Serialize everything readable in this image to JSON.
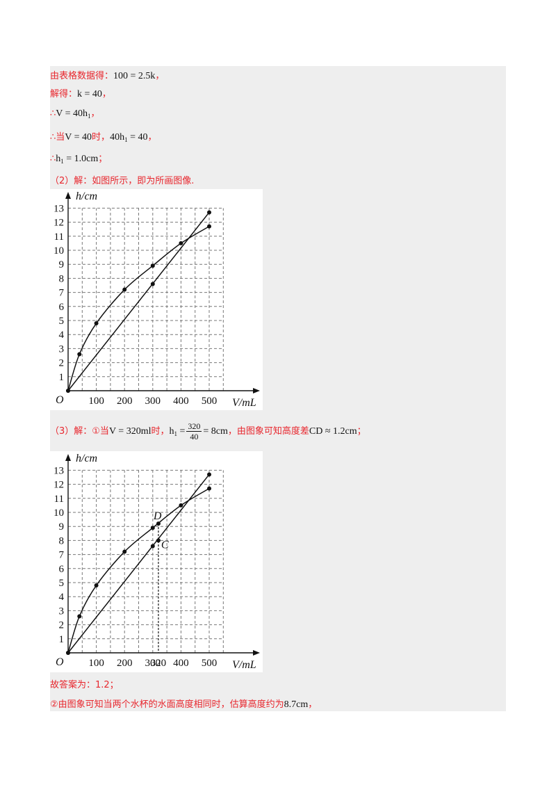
{
  "text": {
    "l1_prefix": "由表格数据得：",
    "l1_eq": "100 = 2.5k",
    "l1_tail": "，",
    "l2_prefix": "解得：",
    "l2_eq": "k = 40",
    "l2_tail": "，",
    "l3_prefix": "∴",
    "l3_eq": "V = 40h",
    "l3_sub": "1",
    "l3_tail": "，",
    "l4_prefix": "∴当",
    "l4_eq1": "V = 40",
    "l4_mid": "时，",
    "l4_eq2": "40h",
    "l4_sub": "1",
    "l4_eq2b": " = 40",
    "l4_tail": "，",
    "l5_prefix": "∴",
    "l5_eq": "h",
    "l5_sub": "1",
    "l5_eq2": " = 1.0cm",
    "l5_tail": "；",
    "l6": "（2）解：如图所示，即为所画图像.",
    "l7_prefix": "（3）解：①当",
    "l7_eq1": "V = 320ml",
    "l7_mid": "时，",
    "l7_h": "h",
    "l7_hsub": "1",
    "l7_eqsign": " =",
    "l7_num": "320",
    "l7_den": "40",
    "l7_eq2": "= 8cm",
    "l7_mid2": "，由图象可知高度差",
    "l7_eq3": "CD ≈ 1.2cm",
    "l7_tail": "；",
    "l8": "故答案为：1.2；",
    "l9_prefix": "②由图象可知当两个水杯的水面高度相同时，估算高度约为",
    "l9_eq": "8.7cm",
    "l9_tail": "，"
  },
  "graph": {
    "y_axis_label": "h/cm",
    "x_axis_label": "V/mL",
    "origin_label": "O",
    "y_ticks": [
      "1",
      "2",
      "3",
      "4",
      "5",
      "6",
      "7",
      "8",
      "9",
      "10",
      "11",
      "12",
      "13"
    ],
    "x_ticks": [
      "100",
      "200",
      "300",
      "400",
      "500"
    ],
    "x_ticks_g2": [
      "100",
      "200",
      "300",
      "320",
      "400",
      "500"
    ],
    "label_D": "D",
    "label_C": "C"
  },
  "chart_data": [
    {
      "type": "line",
      "title": "",
      "xlabel": "V/mL",
      "ylabel": "h/cm",
      "xlim": [
        0,
        500
      ],
      "ylim": [
        0,
        13
      ],
      "grid": true,
      "series": [
        {
          "x": [
            0,
            40,
            100,
            200,
            300,
            400,
            500
          ],
          "y": [
            0,
            2.6,
            4.8,
            7.2,
            8.9,
            10.5,
            11.7
          ]
        },
        {
          "x": [
            0,
            300,
            500
          ],
          "y": [
            0,
            7.6,
            12.7
          ]
        }
      ]
    },
    {
      "type": "line",
      "title": "",
      "xlabel": "V/mL",
      "ylabel": "h/cm",
      "xlim": [
        0,
        500
      ],
      "ylim": [
        0,
        13
      ],
      "grid": true,
      "series": [
        {
          "x": [
            0,
            40,
            100,
            200,
            300,
            400,
            500
          ],
          "y": [
            0,
            2.6,
            4.8,
            7.2,
            8.9,
            10.5,
            11.7
          ]
        },
        {
          "x": [
            0,
            300,
            500
          ],
          "y": [
            0,
            7.6,
            12.7
          ]
        }
      ],
      "annotations": [
        {
          "label": "D",
          "x": 320,
          "y": 9.2
        },
        {
          "label": "C",
          "x": 320,
          "y": 8.0
        }
      ]
    }
  ],
  "colors": {
    "accent_text": "#e8262d",
    "panel": "#eeeeee"
  }
}
